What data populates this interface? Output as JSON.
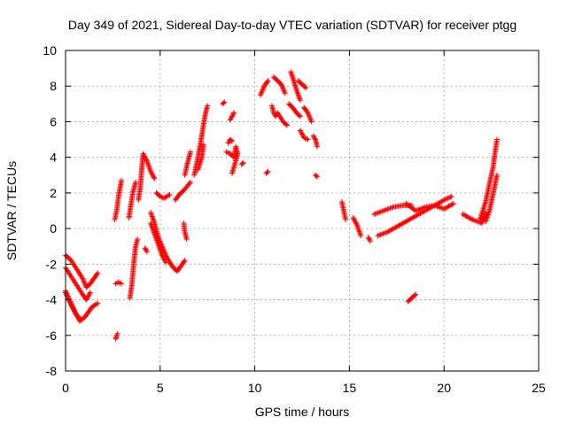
{
  "chart_data": {
    "type": "scatter",
    "title": "Day 349 of 2021, Sidereal Day-to-day VTEC variation (SDTVAR) for receiver ptgg",
    "xlabel": "GPS time / hours",
    "ylabel": "SDTVAR / TECUs",
    "xlim": [
      0,
      25
    ],
    "ylim": [
      -8,
      10
    ],
    "xticks": [
      0,
      5,
      10,
      15,
      20,
      25
    ],
    "yticks": [
      -8,
      -6,
      -4,
      -2,
      0,
      2,
      4,
      6,
      8,
      10
    ],
    "grid": true,
    "marker": "+",
    "color": "#ff0000",
    "tracks": [
      [
        [
          0.0,
          -1.5
        ],
        [
          0.3,
          -1.8
        ],
        [
          0.6,
          -2.3
        ],
        [
          0.9,
          -2.8
        ],
        [
          1.1,
          -3.3
        ],
        [
          1.3,
          -3.1
        ],
        [
          1.5,
          -2.8
        ],
        [
          1.7,
          -2.5
        ]
      ],
      [
        [
          0.0,
          -2.2
        ],
        [
          0.3,
          -2.7
        ],
        [
          0.6,
          -3.2
        ],
        [
          0.9,
          -3.7
        ],
        [
          1.1,
          -4.0
        ],
        [
          1.3,
          -3.6
        ]
      ],
      [
        [
          0.0,
          -3.5
        ],
        [
          0.25,
          -4.1
        ],
        [
          0.5,
          -4.7
        ],
        [
          0.75,
          -5.2
        ],
        [
          1.0,
          -5.0
        ],
        [
          1.2,
          -4.7
        ],
        [
          1.4,
          -4.4
        ],
        [
          1.7,
          -4.2
        ]
      ],
      [
        [
          0.0,
          -3.6
        ],
        [
          0.3,
          -4.3
        ],
        [
          0.55,
          -4.8
        ],
        [
          0.8,
          -5.1
        ]
      ],
      [
        [
          2.65,
          -6.2
        ],
        [
          2.7,
          -6.0
        ],
        [
          2.75,
          -5.9
        ]
      ],
      [
        [
          2.6,
          0.5
        ],
        [
          2.7,
          1.0
        ],
        [
          2.8,
          1.8
        ],
        [
          2.9,
          2.4
        ],
        [
          2.95,
          2.7
        ]
      ],
      [
        [
          2.65,
          -3.1
        ],
        [
          2.8,
          -3.0
        ],
        [
          2.95,
          -3.1
        ]
      ],
      [
        [
          3.4,
          -3.9
        ],
        [
          3.5,
          -3.2
        ],
        [
          3.6,
          -2.0
        ],
        [
          3.7,
          -1.0
        ],
        [
          3.8,
          -0.6
        ]
      ],
      [
        [
          3.35,
          0.6
        ],
        [
          3.45,
          1.3
        ],
        [
          3.55,
          2.0
        ],
        [
          3.7,
          2.6
        ]
      ],
      [
        [
          3.85,
          1.6
        ],
        [
          3.95,
          2.3
        ],
        [
          4.0,
          3.0
        ],
        [
          4.05,
          3.6
        ],
        [
          4.1,
          4.2
        ],
        [
          4.3,
          3.8
        ],
        [
          4.5,
          3.2
        ],
        [
          4.7,
          2.8
        ]
      ],
      [
        [
          4.2,
          -1.1
        ],
        [
          4.3,
          -1.3
        ]
      ],
      [
        [
          4.5,
          0.9
        ],
        [
          4.7,
          0.3
        ],
        [
          4.9,
          -0.5
        ],
        [
          5.1,
          -1.0
        ],
        [
          5.3,
          -1.5
        ],
        [
          5.5,
          -1.9
        ],
        [
          5.7,
          -2.2
        ],
        [
          5.9,
          -2.4
        ],
        [
          6.1,
          -2.1
        ],
        [
          6.3,
          -1.8
        ]
      ],
      [
        [
          4.5,
          0.3
        ],
        [
          4.7,
          -0.3
        ],
        [
          4.9,
          -0.9
        ],
        [
          5.1,
          -1.5
        ],
        [
          5.3,
          -1.9
        ]
      ],
      [
        [
          4.8,
          2.0
        ],
        [
          5.0,
          1.8
        ],
        [
          5.2,
          1.7
        ],
        [
          5.5,
          1.9
        ]
      ],
      [
        [
          5.8,
          1.6
        ],
        [
          6.0,
          1.9
        ],
        [
          6.3,
          2.2
        ],
        [
          6.6,
          2.6
        ]
      ],
      [
        [
          6.3,
          3.0
        ],
        [
          6.4,
          3.5
        ],
        [
          6.5,
          3.9
        ],
        [
          6.6,
          4.3
        ]
      ],
      [
        [
          6.25,
          0.3
        ],
        [
          6.3,
          -0.2
        ],
        [
          6.4,
          -0.6
        ]
      ],
      [
        [
          6.8,
          3.0
        ],
        [
          7.0,
          4.0
        ],
        [
          7.1,
          4.6
        ],
        [
          7.2,
          5.2
        ],
        [
          7.3,
          5.9
        ],
        [
          7.4,
          6.5
        ],
        [
          7.5,
          6.9
        ]
      ],
      [
        [
          7.0,
          3.3
        ],
        [
          7.2,
          4.0
        ],
        [
          7.3,
          4.7
        ]
      ],
      [
        [
          8.3,
          7.0
        ],
        [
          8.4,
          7.1
        ]
      ],
      [
        [
          8.7,
          6.1
        ],
        [
          8.8,
          6.3
        ],
        [
          8.9,
          6.5
        ]
      ],
      [
        [
          8.6,
          4.8
        ],
        [
          8.7,
          5.0
        ],
        [
          8.8,
          4.9
        ]
      ],
      [
        [
          8.5,
          4.3
        ],
        [
          8.7,
          4.2
        ],
        [
          8.9,
          4.0
        ],
        [
          9.0,
          4.6
        ],
        [
          9.1,
          4.2
        ],
        [
          8.8,
          3.1
        ]
      ],
      [
        [
          9.3,
          3.6
        ],
        [
          9.4,
          3.7
        ]
      ],
      [
        [
          10.3,
          7.5
        ],
        [
          10.5,
          8.0
        ],
        [
          10.7,
          8.3
        ]
      ],
      [
        [
          10.6,
          3.1
        ],
        [
          10.7,
          3.2
        ]
      ],
      [
        [
          11.0,
          8.5
        ],
        [
          11.2,
          8.3
        ],
        [
          11.4,
          8.1
        ],
        [
          11.6,
          7.6
        ]
      ],
      [
        [
          10.9,
          6.9
        ],
        [
          11.0,
          6.5
        ],
        [
          11.1,
          6.3
        ],
        [
          11.2,
          6.5
        ],
        [
          11.5,
          6.0
        ],
        [
          11.7,
          5.8
        ]
      ],
      [
        [
          11.9,
          8.8
        ],
        [
          12.0,
          8.5
        ],
        [
          12.2,
          7.8
        ],
        [
          12.4,
          7.2
        ]
      ],
      [
        [
          11.8,
          7.0
        ],
        [
          12.0,
          6.8
        ],
        [
          12.2,
          6.5
        ],
        [
          12.4,
          6.3
        ]
      ],
      [
        [
          12.3,
          8.3
        ],
        [
          12.5,
          8.1
        ],
        [
          12.7,
          7.9
        ]
      ],
      [
        [
          12.4,
          5.5
        ],
        [
          12.6,
          5.1
        ],
        [
          12.8,
          5.0
        ]
      ],
      [
        [
          12.6,
          6.8
        ],
        [
          12.8,
          6.5
        ],
        [
          13.0,
          6.0
        ]
      ],
      [
        [
          13.1,
          5.2
        ],
        [
          13.2,
          5.0
        ],
        [
          13.3,
          4.6
        ]
      ],
      [
        [
          13.2,
          3.0
        ],
        [
          13.3,
          2.9
        ]
      ],
      [
        [
          14.6,
          1.5
        ],
        [
          14.7,
          1.0
        ],
        [
          14.8,
          0.5
        ]
      ],
      [
        [
          15.2,
          0.6
        ],
        [
          15.4,
          0.2
        ],
        [
          15.6,
          -0.4
        ]
      ],
      [
        [
          16.0,
          -0.5
        ],
        [
          16.1,
          -0.7
        ]
      ],
      [
        [
          16.3,
          0.8
        ],
        [
          16.8,
          1.0
        ],
        [
          17.3,
          1.2
        ],
        [
          17.8,
          1.3
        ],
        [
          18.3,
          1.3
        ]
      ],
      [
        [
          16.5,
          -0.4
        ],
        [
          17.0,
          -0.2
        ],
        [
          17.5,
          0.1
        ],
        [
          18.0,
          0.4
        ],
        [
          18.5,
          0.7
        ],
        [
          19.0,
          1.0
        ],
        [
          19.5,
          1.3
        ],
        [
          20.0,
          1.6
        ],
        [
          20.4,
          1.8
        ]
      ],
      [
        [
          18.0,
          1.4
        ],
        [
          18.5,
          1.0
        ],
        [
          19.0,
          1.2
        ],
        [
          19.5,
          1.3
        ],
        [
          20.0,
          1.1
        ],
        [
          20.5,
          1.4
        ]
      ],
      [
        [
          18.1,
          -4.1
        ],
        [
          18.3,
          -3.9
        ],
        [
          18.5,
          -3.7
        ]
      ],
      [
        [
          21.0,
          0.8
        ],
        [
          21.5,
          0.5
        ],
        [
          22.0,
          0.3
        ],
        [
          22.2,
          0.9
        ]
      ],
      [
        [
          21.9,
          0.5
        ],
        [
          22.2,
          1.5
        ],
        [
          22.4,
          2.5
        ],
        [
          22.6,
          3.5
        ],
        [
          22.7,
          4.3
        ],
        [
          22.8,
          5.0
        ]
      ],
      [
        [
          22.2,
          0.4
        ],
        [
          22.4,
          1.0
        ],
        [
          22.6,
          2.0
        ],
        [
          22.8,
          3.0
        ]
      ]
    ]
  }
}
